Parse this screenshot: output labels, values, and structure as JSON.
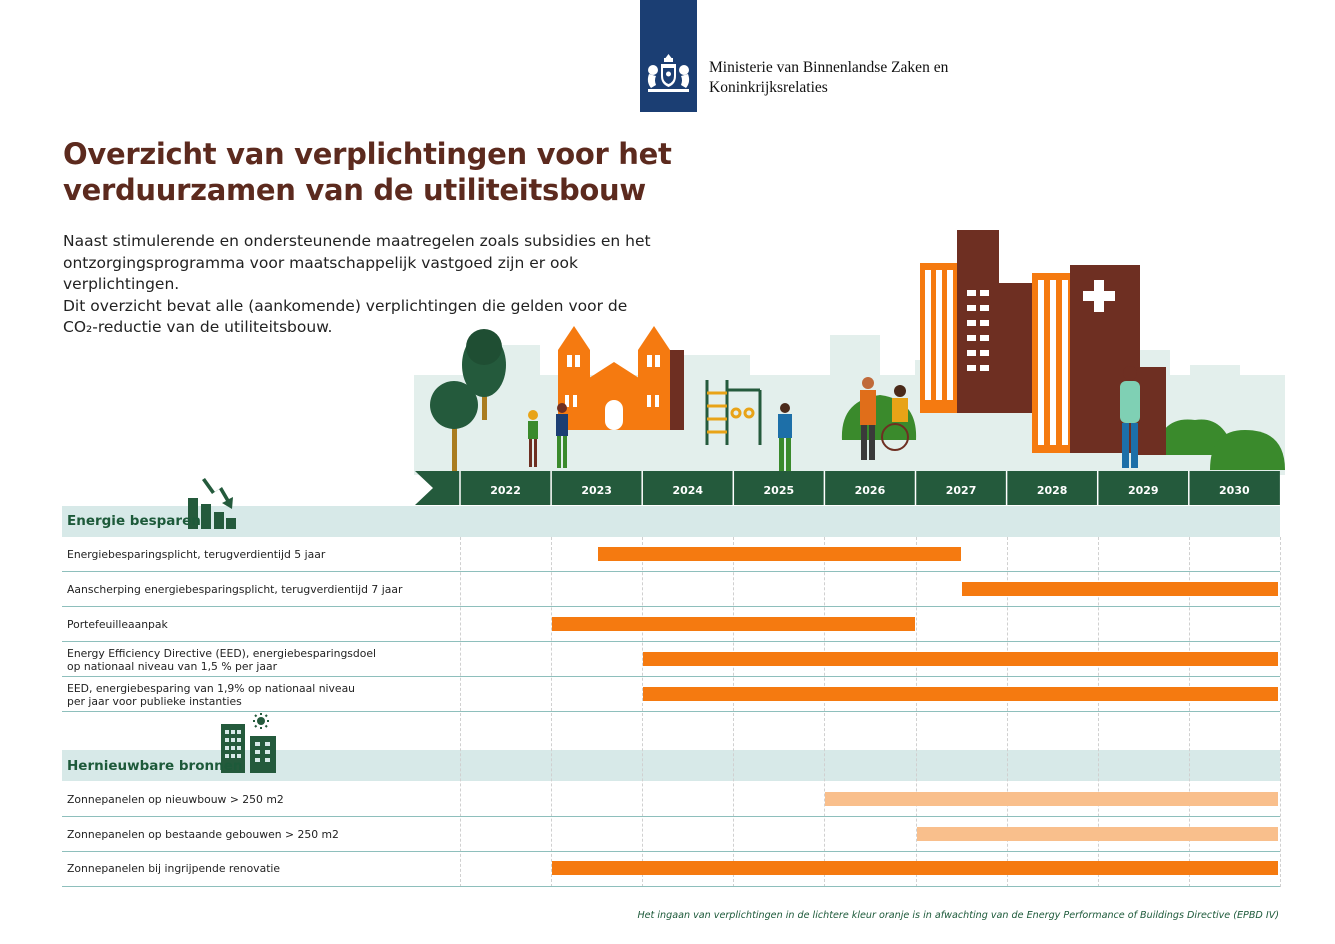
{
  "header": {
    "ministry_line1": "Ministerie van Binnenlandse Zaken en",
    "ministry_line2": "Koninkrijksrelaties"
  },
  "title_line1": "Overzicht van verplichtingen voor het",
  "title_line2": "verduurzamen van de utiliteitsbouw",
  "intro": [
    "Naast stimulerende en ondersteunende maatregelen zoals subsidies en het",
    "ontzorgingsprogramma voor maatschappelijk vastgoed zijn er ook verplichtingen.",
    "Dit overzicht bevat alle (aankomende) verplichtingen die gelden voor de",
    "CO₂-reductie van de utiliteitsbouw."
  ],
  "footnote": "Het ingaan van verplichtingen in de lichtere kleur oranje is in afwachting van de Energy Performance of Buildings Directive (EPBD IV)",
  "chart_data": {
    "type": "gantt",
    "years": [
      "2022",
      "2023",
      "2024",
      "2025",
      "2026",
      "2027",
      "2028",
      "2029",
      "2030"
    ],
    "categories": [
      {
        "name": "Energie besparen",
        "icon": "declining-bar-chart-icon",
        "rows": [
          {
            "label_lines": [
              "Energiebesparingsplicht, terugverdientijd 5 jaar"
            ],
            "start": 2023.5,
            "end": 2027.5,
            "status": "confirmed"
          },
          {
            "label_lines": [
              "Aanscherping energiebesparingsplicht, terugverdientijd 7 jaar"
            ],
            "start": 2027.5,
            "end": 2031.0,
            "status": "confirmed"
          },
          {
            "label_lines": [
              "Portefeuilleaanpak"
            ],
            "start": 2023.0,
            "end": 2027.0,
            "status": "confirmed"
          },
          {
            "label_lines": [
              "Energy Efficiency Directive (EED), energiebesparingsdoel",
              "op nationaal niveau van 1,5 % per jaar"
            ],
            "start": 2024.0,
            "end": 2031.0,
            "status": "confirmed"
          },
          {
            "label_lines": [
              "EED, energiebesparing van 1,9% op nationaal niveau",
              "per jaar voor publieke instanties"
            ],
            "start": 2024.0,
            "end": 2031.0,
            "status": "confirmed"
          }
        ]
      },
      {
        "name": "Hernieuwbare bronnen",
        "icon": "solar-buildings-icon",
        "rows": [
          {
            "label_lines": [
              "Zonnepanelen op nieuwbouw > 250 m2"
            ],
            "start": 2026.0,
            "end": 2031.0,
            "status": "pending-epbd"
          },
          {
            "label_lines": [
              "Zonnepanelen op bestaande gebouwen > 250 m2"
            ],
            "start": 2027.0,
            "end": 2031.0,
            "status": "pending-epbd"
          },
          {
            "label_lines": [
              "Zonnepanelen bij ingrijpende renovatie"
            ],
            "start": 2023.0,
            "end": 2031.0,
            "status": "confirmed"
          }
        ]
      }
    ],
    "colors": {
      "confirmed": "#f57a10",
      "pending-epbd": "#f9bf8c",
      "timeline": "#245a3c",
      "category_band": "#d7e9e8",
      "title": "#5c2a1e"
    }
  }
}
